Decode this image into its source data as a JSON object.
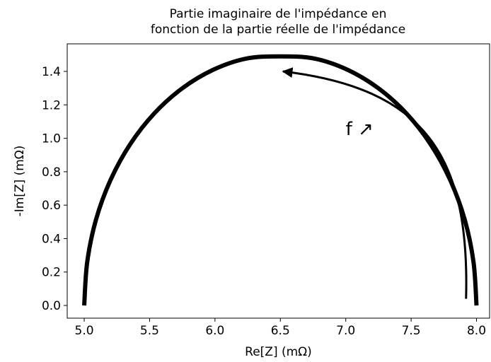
{
  "chart_data": {
    "type": "line",
    "title": "Partie imaginaire de l'impédance en\nfonction de la partie réelle de l'impédance",
    "xlabel": "Re[Z] (mΩ)",
    "ylabel": "-Im[Z] (mΩ)",
    "annotation": "f ↗",
    "xlim": [
      4.87,
      8.1
    ],
    "ylim": [
      -0.076,
      1.565
    ],
    "xticks": [
      {
        "value": 5,
        "label": "5.0"
      },
      5.5,
      {
        "value": 6,
        "label": "6.0"
      },
      6.5,
      {
        "value": 7,
        "label": "7.0"
      },
      7.5,
      {
        "value": 8,
        "label": "8.0"
      }
    ],
    "yticks": [
      {
        "value": 0,
        "label": "0.0"
      },
      0.2,
      0.4,
      0.6,
      0.8,
      {
        "value": 1,
        "label": "1.0"
      },
      1.2,
      1.4
    ],
    "series": [
      {
        "color": "#000000",
        "x": [
          8.0,
          7.977,
          7.91,
          7.799,
          7.649,
          7.464,
          7.25,
          7.013,
          6.76,
          6.5,
          6.24,
          5.987,
          5.75,
          5.536,
          5.351,
          5.201,
          5.09,
          5.023,
          5.0
        ],
        "values": [
          0,
          0.26,
          0.513,
          0.75,
          0.964,
          1.149,
          1.299,
          1.41,
          1.477,
          1.49,
          1.477,
          1.41,
          1.299,
          1.149,
          0.964,
          0.75,
          0.513,
          0.26,
          0
        ]
      }
    ]
  }
}
